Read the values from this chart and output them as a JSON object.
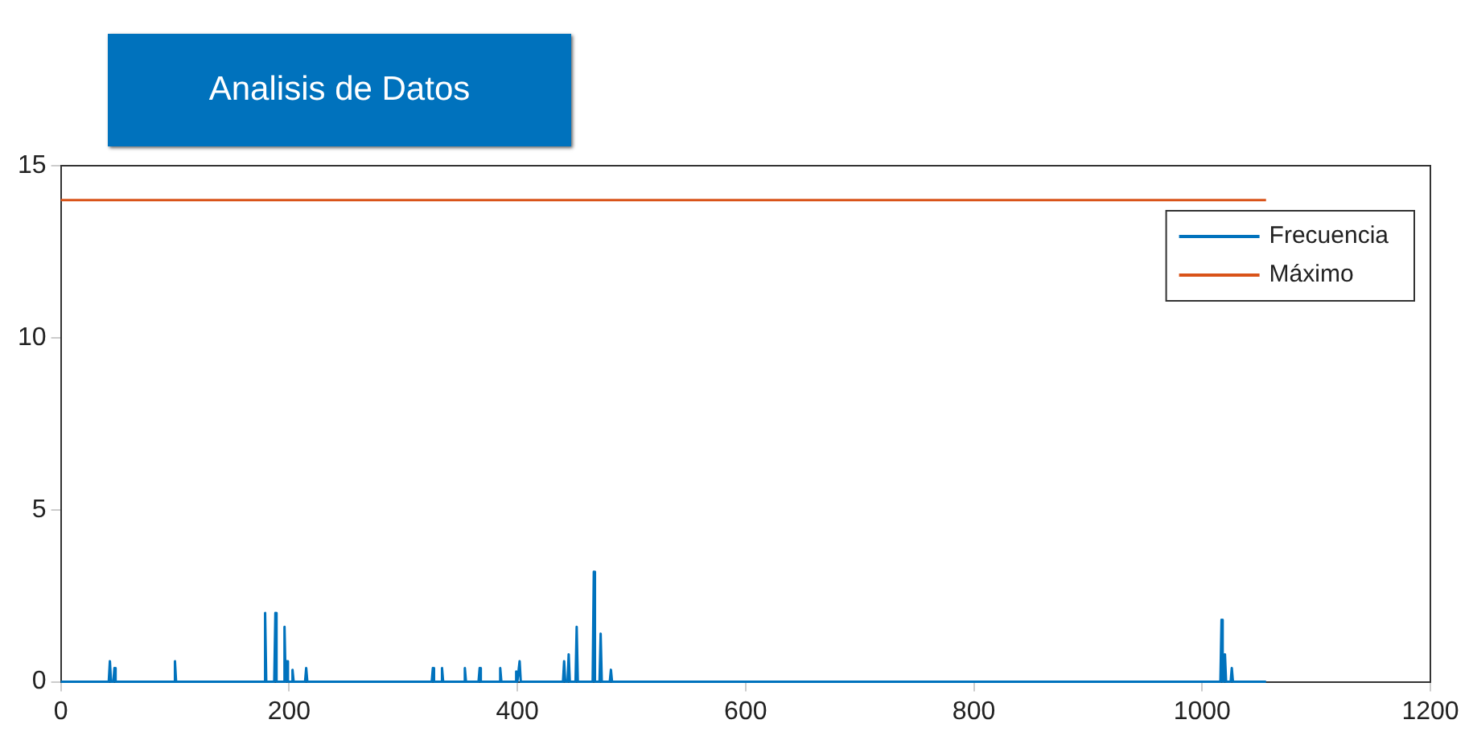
{
  "chart_data": {
    "type": "line",
    "title": "Analisis de Datos",
    "xlim": [
      0,
      1200
    ],
    "xticks": [
      0,
      200,
      400,
      600,
      800,
      1000,
      1200
    ],
    "ylim": [
      0,
      15
    ],
    "yticks": [
      0,
      5,
      10,
      15
    ],
    "legend": "top right",
    "grid": false,
    "marker": "none",
    "series": [
      {
        "name": "Frecuencia",
        "color": "#0072bd",
        "x": [
          0,
          42,
          43,
          44,
          46,
          47,
          48,
          99,
          100,
          101,
          178,
          179,
          180,
          187,
          188,
          189,
          195,
          196,
          197,
          198,
          199,
          202,
          203,
          204,
          214,
          215,
          216,
          325,
          326,
          327,
          333,
          334,
          335,
          353,
          354,
          355,
          366,
          367,
          368,
          384,
          385,
          386,
          398,
          399,
          400,
          402,
          403,
          440,
          441,
          442,
          444,
          445,
          446,
          451,
          452,
          453,
          466,
          467,
          468,
          472,
          473,
          474,
          481,
          482,
          483,
          1016,
          1017,
          1018,
          1019,
          1020,
          1021,
          1025,
          1026,
          1027,
          1056
        ],
        "values": [
          0,
          0,
          0.6,
          0,
          0,
          0.4,
          0,
          0,
          0.6,
          0,
          0,
          2.0,
          0,
          0,
          2.0,
          0,
          0,
          1.6,
          0,
          0.6,
          0,
          0,
          0.35,
          0,
          0,
          0.4,
          0,
          0,
          0.4,
          0,
          0,
          0.4,
          0,
          0,
          0.4,
          0,
          0,
          0.4,
          0,
          0,
          0.4,
          0,
          0,
          0.3,
          0,
          0.6,
          0,
          0,
          0.6,
          0,
          0,
          0.8,
          0,
          0,
          1.6,
          0,
          0,
          3.2,
          0,
          0,
          1.4,
          0,
          0,
          0.35,
          0,
          0,
          1.8,
          0,
          0,
          0.8,
          0,
          0,
          0.4,
          0,
          0
        ]
      },
      {
        "name": "Máximo",
        "color": "#d95319",
        "x": [
          0,
          1056
        ],
        "values": [
          14,
          14
        ]
      }
    ]
  }
}
